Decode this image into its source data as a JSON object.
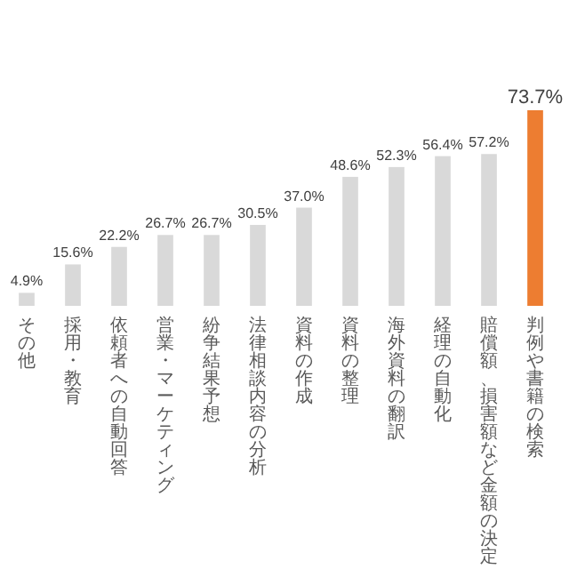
{
  "chart_data": {
    "type": "bar",
    "categories": [
      "その他",
      "採用・教育",
      "依頼者への自動回答",
      "営業・マーケティング",
      "紛争結果予想",
      "法律相談内容の分析",
      "資料の作成",
      "資料の整理",
      "海外資料の翻訳",
      "経理の自動化",
      "賠償額、損害額など金額の決定",
      "判例や書籍の検索"
    ],
    "values": [
      4.9,
      15.6,
      22.2,
      26.7,
      26.7,
      30.5,
      37.0,
      48.6,
      52.3,
      56.4,
      57.2,
      73.7
    ],
    "value_labels": [
      "4.9%",
      "15.6%",
      "22.2%",
      "26.7%",
      "26.7%",
      "30.5%",
      "37.0%",
      "48.6%",
      "52.3%",
      "56.4%",
      "57.2%",
      "73.7%"
    ],
    "colors": [
      "#d9d9d9",
      "#d9d9d9",
      "#d9d9d9",
      "#d9d9d9",
      "#d9d9d9",
      "#d9d9d9",
      "#d9d9d9",
      "#d9d9d9",
      "#d9d9d9",
      "#d9d9d9",
      "#d9d9d9",
      "#ed7d31"
    ]
  }
}
